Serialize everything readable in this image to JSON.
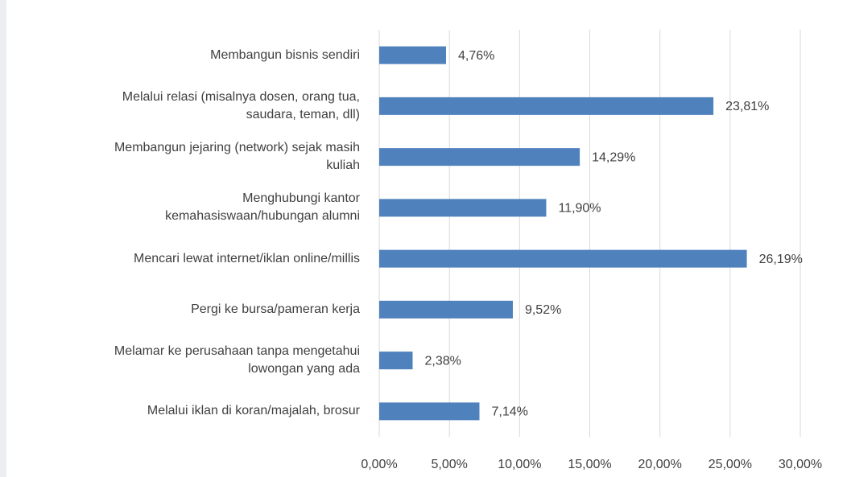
{
  "chart_data": {
    "type": "barh",
    "categories": [
      "Membangun bisnis sendiri",
      "Melalui relasi (misalnya dosen, orang tua,\nsaudara, teman, dll)",
      "Membangun jejaring (network) sejak masih\nkuliah",
      "Menghubungi kantor\nkemahasiswaan/hubungan alumni",
      "Mencari lewat internet/iklan online/millis",
      "Pergi ke bursa/pameran kerja",
      "Melamar ke perusahaan tanpa mengetahui\nlowongan yang ada",
      "Melalui iklan di koran/majalah, brosur"
    ],
    "values": [
      4.76,
      23.81,
      14.29,
      11.9,
      26.19,
      9.52,
      2.38,
      7.14
    ],
    "value_labels": [
      "4,76%",
      "23,81%",
      "14,29%",
      "11,90%",
      "26,19%",
      "9,52%",
      "2,38%",
      "7,14%"
    ],
    "color": "#4f81bd",
    "xlim": [
      0,
      30
    ],
    "xticks": [
      {
        "value": 0,
        "label": "0,00%"
      },
      {
        "value": 5,
        "label": "5,00%"
      },
      {
        "value": 10,
        "label": "10,00%"
      },
      {
        "value": 15,
        "label": "15,00%"
      },
      {
        "value": 20,
        "label": "20,00%"
      },
      {
        "value": 25,
        "label": "25,00%"
      },
      {
        "value": 30,
        "label": "30,00%"
      }
    ],
    "grid": true
  }
}
